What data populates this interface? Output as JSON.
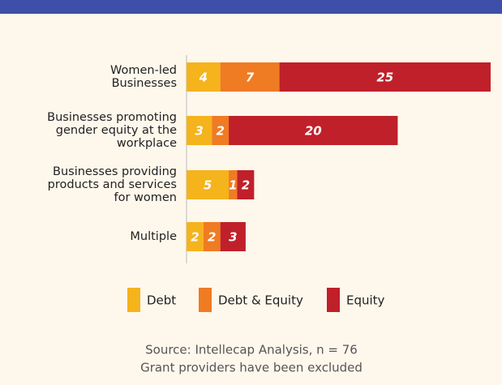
{
  "chart_data": {
    "type": "stacked-barh",
    "categories": [
      "Women-led\nBusinesses",
      "Businesses promoting\ngender equity at the\nworkplace",
      "Businesses providing\nproducts and services\nfor women",
      "Multiple"
    ],
    "series": [
      {
        "name": "Debt",
        "color": "#f5b31c",
        "values": [
          4,
          3,
          5,
          2
        ]
      },
      {
        "name": "Debt & Equity",
        "color": "#ef7b23",
        "values": [
          7,
          2,
          1,
          2
        ]
      },
      {
        "name": "Equity",
        "color": "#c0202a",
        "values": [
          25,
          20,
          2,
          3
        ]
      }
    ],
    "source": [
      "Source: Intellecap Analysis, n = 76",
      "Grant providers have been excluded"
    ]
  }
}
